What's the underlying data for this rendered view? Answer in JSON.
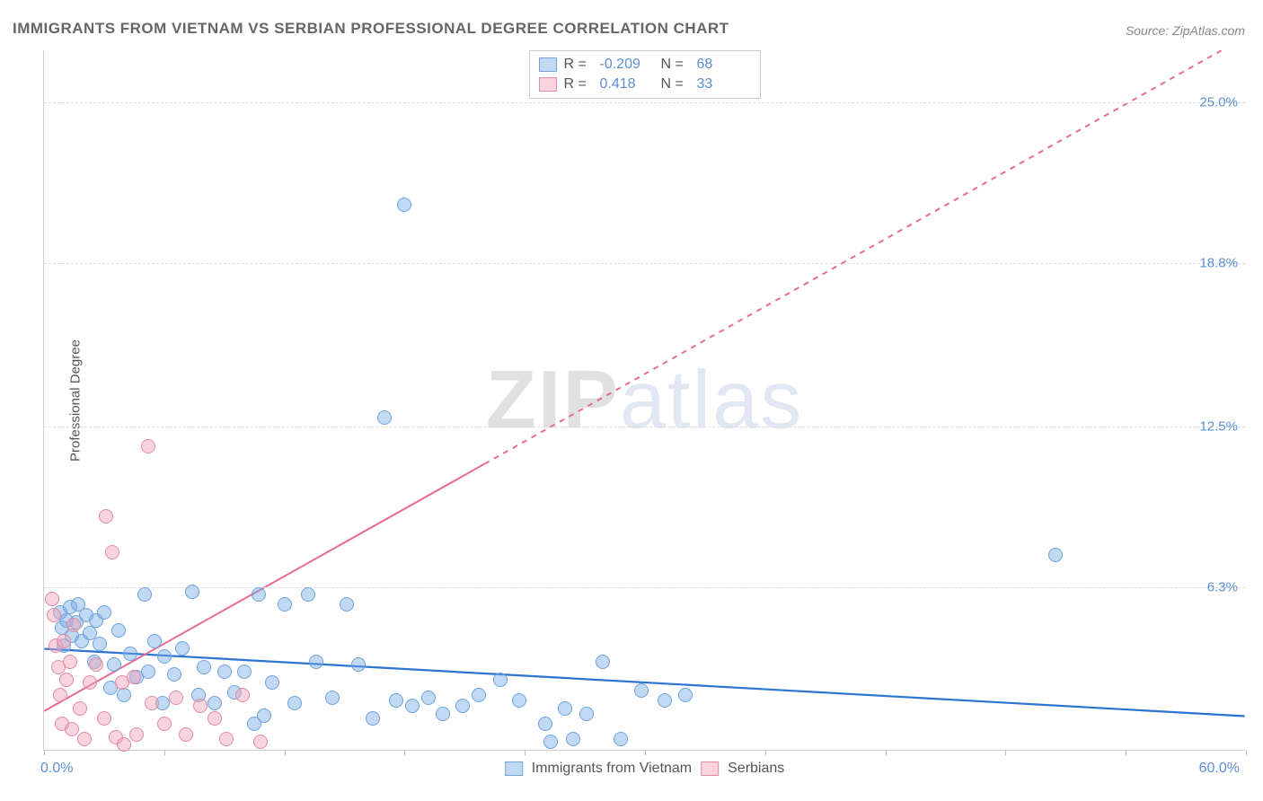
{
  "title": "IMMIGRANTS FROM VIETNAM VS SERBIAN PROFESSIONAL DEGREE CORRELATION CHART",
  "source": "Source: ZipAtlas.com",
  "ylabel": "Professional Degree",
  "watermark_a": "ZIP",
  "watermark_b": "atlas",
  "chart": {
    "type": "scatter",
    "xlim": [
      0,
      60
    ],
    "ylim": [
      0,
      27
    ],
    "x_axis_labels": [
      {
        "value": 0.0,
        "text": "0.0%"
      },
      {
        "value": 60.0,
        "text": "60.0%"
      }
    ],
    "x_ticks": [
      0,
      6,
      12,
      18,
      24,
      30,
      36,
      42,
      48,
      54,
      60
    ],
    "y_gridlines": [
      {
        "value": 6.3,
        "text": "6.3%"
      },
      {
        "value": 12.5,
        "text": "12.5%"
      },
      {
        "value": 18.8,
        "text": "18.8%"
      },
      {
        "value": 25.0,
        "text": "25.0%"
      }
    ],
    "background_color": "#ffffff",
    "grid_color": "#dddddd",
    "axis_color": "#cfcfcf",
    "tick_label_color": "#5b8fd6",
    "point_radius": 8,
    "point_stroke_width": 1.2,
    "series": [
      {
        "key": "vietnam",
        "label": "Immigrants from Vietnam",
        "fill": "rgba(120,170,230,0.45)",
        "stroke": "#6fa3da",
        "R": "-0.209",
        "N": "68",
        "trend": {
          "x1": 0,
          "y1": 3.9,
          "x2": 60,
          "y2": 1.3,
          "color": "#2b74d1",
          "width": 2.2,
          "dash": "none"
        },
        "points": [
          [
            0.8,
            5.3
          ],
          [
            0.9,
            4.7
          ],
          [
            1.0,
            4.0
          ],
          [
            1.1,
            5.0
          ],
          [
            1.3,
            5.5
          ],
          [
            1.4,
            4.4
          ],
          [
            1.6,
            4.9
          ],
          [
            1.7,
            5.6
          ],
          [
            1.9,
            4.2
          ],
          [
            2.1,
            5.2
          ],
          [
            2.3,
            4.5
          ],
          [
            2.5,
            3.4
          ],
          [
            2.6,
            5.0
          ],
          [
            2.8,
            4.1
          ],
          [
            3.0,
            5.3
          ],
          [
            3.3,
            2.4
          ],
          [
            3.5,
            3.3
          ],
          [
            3.7,
            4.6
          ],
          [
            4.0,
            2.1
          ],
          [
            4.3,
            3.7
          ],
          [
            4.6,
            2.8
          ],
          [
            5.0,
            6.0
          ],
          [
            5.2,
            3.0
          ],
          [
            5.5,
            4.2
          ],
          [
            5.9,
            1.8
          ],
          [
            6.0,
            3.6
          ],
          [
            6.5,
            2.9
          ],
          [
            6.9,
            3.9
          ],
          [
            7.4,
            6.1
          ],
          [
            7.7,
            2.1
          ],
          [
            8.0,
            3.2
          ],
          [
            8.5,
            1.8
          ],
          [
            9.0,
            3.0
          ],
          [
            9.5,
            2.2
          ],
          [
            10.0,
            3.0
          ],
          [
            10.7,
            6.0
          ],
          [
            11.0,
            1.3
          ],
          [
            11.4,
            2.6
          ],
          [
            12.0,
            5.6
          ],
          [
            12.5,
            1.8
          ],
          [
            13.2,
            6.0
          ],
          [
            13.6,
            3.4
          ],
          [
            14.4,
            2.0
          ],
          [
            15.1,
            5.6
          ],
          [
            15.7,
            3.3
          ],
          [
            16.4,
            1.2
          ],
          [
            17.0,
            12.8
          ],
          [
            17.6,
            1.9
          ],
          [
            18.4,
            1.7
          ],
          [
            19.2,
            2.0
          ],
          [
            19.9,
            1.4
          ],
          [
            20.9,
            1.7
          ],
          [
            21.7,
            2.1
          ],
          [
            22.8,
            2.7
          ],
          [
            23.7,
            1.9
          ],
          [
            25.0,
            1.0
          ],
          [
            25.3,
            0.3
          ],
          [
            26.0,
            1.6
          ],
          [
            26.4,
            0.4
          ],
          [
            27.1,
            1.4
          ],
          [
            27.9,
            3.4
          ],
          [
            28.8,
            0.4
          ],
          [
            29.8,
            2.3
          ],
          [
            31.0,
            1.9
          ],
          [
            32.0,
            2.1
          ],
          [
            50.5,
            7.5
          ],
          [
            18.0,
            21.0
          ],
          [
            10.5,
            1.0
          ]
        ]
      },
      {
        "key": "serbians",
        "label": "Serbians",
        "fill": "rgba(240,160,185,0.45)",
        "stroke": "#e28aa6",
        "R": "0.418",
        "N": "33",
        "trend": {
          "x1": 0,
          "y1": 1.5,
          "x2": 60,
          "y2": 27.5,
          "color": "#e76b93",
          "width": 2.0,
          "dash": "6,6",
          "solid_until_x": 22
        },
        "points": [
          [
            0.4,
            5.8
          ],
          [
            0.5,
            5.2
          ],
          [
            0.6,
            4.0
          ],
          [
            0.7,
            3.2
          ],
          [
            0.8,
            2.1
          ],
          [
            0.9,
            1.0
          ],
          [
            1.0,
            4.2
          ],
          [
            1.1,
            2.7
          ],
          [
            1.3,
            3.4
          ],
          [
            1.4,
            0.8
          ],
          [
            1.5,
            4.8
          ],
          [
            1.8,
            1.6
          ],
          [
            2.0,
            0.4
          ],
          [
            2.3,
            2.6
          ],
          [
            2.6,
            3.3
          ],
          [
            3.0,
            1.2
          ],
          [
            3.1,
            9.0
          ],
          [
            3.4,
            7.6
          ],
          [
            3.6,
            0.5
          ],
          [
            3.9,
            2.6
          ],
          [
            4.0,
            0.2
          ],
          [
            4.5,
            2.8
          ],
          [
            4.6,
            0.6
          ],
          [
            5.2,
            11.7
          ],
          [
            5.4,
            1.8
          ],
          [
            6.0,
            1.0
          ],
          [
            6.6,
            2.0
          ],
          [
            7.1,
            0.6
          ],
          [
            7.8,
            1.7
          ],
          [
            8.5,
            1.2
          ],
          [
            9.1,
            0.4
          ],
          [
            9.9,
            2.1
          ],
          [
            10.8,
            0.3
          ]
        ]
      }
    ],
    "legend_top": {
      "border_color": "#cccccc",
      "text_color": "#555555",
      "value_color": "#5b8fd6"
    }
  }
}
